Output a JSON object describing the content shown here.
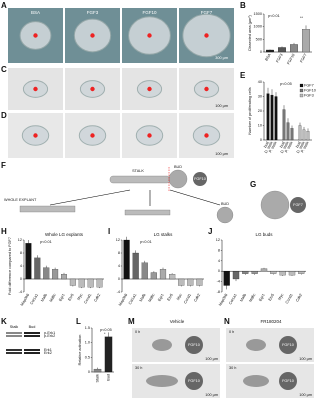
{
  "panel_letters": [
    "A",
    "B",
    "C",
    "D",
    "E",
    "F",
    "G",
    "H",
    "I",
    "J",
    "K",
    "L",
    "M",
    "N"
  ],
  "a": {
    "labels": [
      "BSA",
      "FGF3",
      "FGF10",
      "FGF7"
    ],
    "scale": "300 µm"
  },
  "b": {
    "type": "bar",
    "ylabel": "Dissected area (µm²)",
    "categories": [
      "BSA",
      "FGF3",
      "FGF10",
      "FGF7"
    ],
    "values": [
      80,
      180,
      300,
      900
    ],
    "errors": [
      20,
      40,
      60,
      150
    ],
    "colors": [
      "#222",
      "#555",
      "#888",
      "#aaa"
    ],
    "ylim": [
      0,
      1500
    ],
    "yticks": [
      0,
      500,
      1000,
      1500
    ],
    "annotations": [
      "p<0.01",
      "**"
    ]
  },
  "c": {
    "scale": "100 µm"
  },
  "d": {
    "scale": "100 µm"
  },
  "e": {
    "type": "bar",
    "ylabel": "Number of proliferating cells",
    "categories": [
      "bud",
      "D. stalk",
      "P. stalk"
    ],
    "series": [
      {
        "name": "FGF7",
        "color": "#111",
        "values": [
          32,
          31,
          30
        ],
        "errors": [
          4,
          4,
          3
        ]
      },
      {
        "name": "FGF10",
        "color": "#777",
        "values": [
          21,
          12,
          8
        ],
        "errors": [
          3,
          3,
          2
        ]
      },
      {
        "name": "FGF3",
        "color": "#bbb",
        "values": [
          10,
          7,
          6
        ],
        "errors": [
          2,
          2,
          2
        ]
      }
    ],
    "ylim": [
      0,
      40
    ],
    "yticks": [
      0,
      10,
      20,
      30,
      40
    ],
    "annotations": [
      "p<0.05"
    ]
  },
  "f": {
    "stalk": "STALK",
    "bud": "BUD",
    "bead": "FGF10",
    "whole": "WHOLE EXPLANT",
    "bud_result": "BUD"
  },
  "g": {
    "bead": "FGF7"
  },
  "h": {
    "type": "bar",
    "title": "Whole LG explants",
    "ylabel": "Fold difference compared to FGF7",
    "categories": [
      "Map3k6",
      "Col1a1",
      "Mafb",
      "Mdfic",
      "Egr1",
      "Etv5",
      "Myc",
      "Ccnd1",
      "Cdk2"
    ],
    "values": [
      11,
      6.5,
      3.5,
      3,
      1.5,
      -2,
      -2.5,
      -2.5,
      -2.5
    ],
    "errors": [
      1,
      0.8,
      0.6,
      0.5,
      0.4,
      0.3,
      0.3,
      0.3,
      0.3
    ],
    "colors": [
      "#111",
      "#666",
      "#888",
      "#999",
      "#aaa",
      "#bbb",
      "#bbb",
      "#bbb",
      "#bbb"
    ],
    "ylim": [
      -4,
      12
    ],
    "yticks": [
      -4,
      0,
      4,
      8,
      12
    ],
    "annotations": [
      "p<0.01"
    ]
  },
  "i": {
    "type": "bar",
    "title": "LG stalks",
    "categories": [
      "Map3k6",
      "Col1a1",
      "Mafb",
      "Mdfic",
      "Egr1",
      "Etv5",
      "Myc",
      "Ccnd1",
      "Cdk2"
    ],
    "values": [
      12,
      8,
      5,
      2,
      3,
      1.5,
      -2,
      -2,
      -2
    ],
    "errors": [
      1,
      0.8,
      0.6,
      0.4,
      0.5,
      0.3,
      0.3,
      0.3,
      0.3
    ],
    "colors": [
      "#111",
      "#666",
      "#888",
      "#999",
      "#aaa",
      "#bbb",
      "#bbb",
      "#bbb",
      "#bbb"
    ],
    "ylim": [
      -4,
      12
    ],
    "yticks": [
      -4,
      0,
      4,
      8,
      12
    ],
    "annotations": [
      "p<0.01"
    ]
  },
  "j": {
    "type": "bar",
    "title": "LG buds",
    "categories": [
      "Map3k6",
      "Col1a1",
      "Mafb",
      "Mdfic",
      "Egr1",
      "Etv5",
      "Myc",
      "Ccnd1",
      "Cdk2"
    ],
    "values": [
      -5.5,
      -3,
      -1,
      -1,
      1,
      -1,
      -1.5,
      -1.5,
      -1
    ],
    "errors": [
      1.5,
      0.8,
      0.4,
      0.4,
      0.3,
      0.3,
      0.3,
      0.3,
      0.3
    ],
    "colors": [
      "#111",
      "#666",
      "#888",
      "#999",
      "#aaa",
      "#bbb",
      "#bbb",
      "#bbb",
      "#bbb"
    ],
    "ylim": [
      -8,
      12
    ],
    "yticks": [
      -8,
      -4,
      0,
      4,
      8,
      12
    ],
    "annotations": []
  },
  "k": {
    "lanes": [
      "Stalk",
      "Bud"
    ],
    "bands": [
      "p-Erk1",
      "p-Erk2",
      "Erk1",
      "Erk2"
    ]
  },
  "l": {
    "type": "bar",
    "ylabel": "Relative activation",
    "categories": [
      "Stalk",
      "Bud"
    ],
    "values": [
      0.1,
      1.2
    ],
    "errors": [
      0.05,
      0.15
    ],
    "colors": [
      "#888",
      "#222"
    ],
    "ylim": [
      0,
      1.5
    ],
    "yticks": [
      0,
      0.5,
      {
        "value": 1,
        "label": "1.0"
      },
      1.5
    ],
    "annotations": [
      "p<0.05",
      "*"
    ]
  },
  "m": {
    "title": "Vehicle",
    "times": [
      "0 h",
      "30 h"
    ],
    "bead": "FGF10",
    "scale": "100 µm"
  },
  "n": {
    "title": "FR180204",
    "times": [
      "0 h",
      "30 h"
    ],
    "bead": "FGF10",
    "scale": "100 µm"
  }
}
